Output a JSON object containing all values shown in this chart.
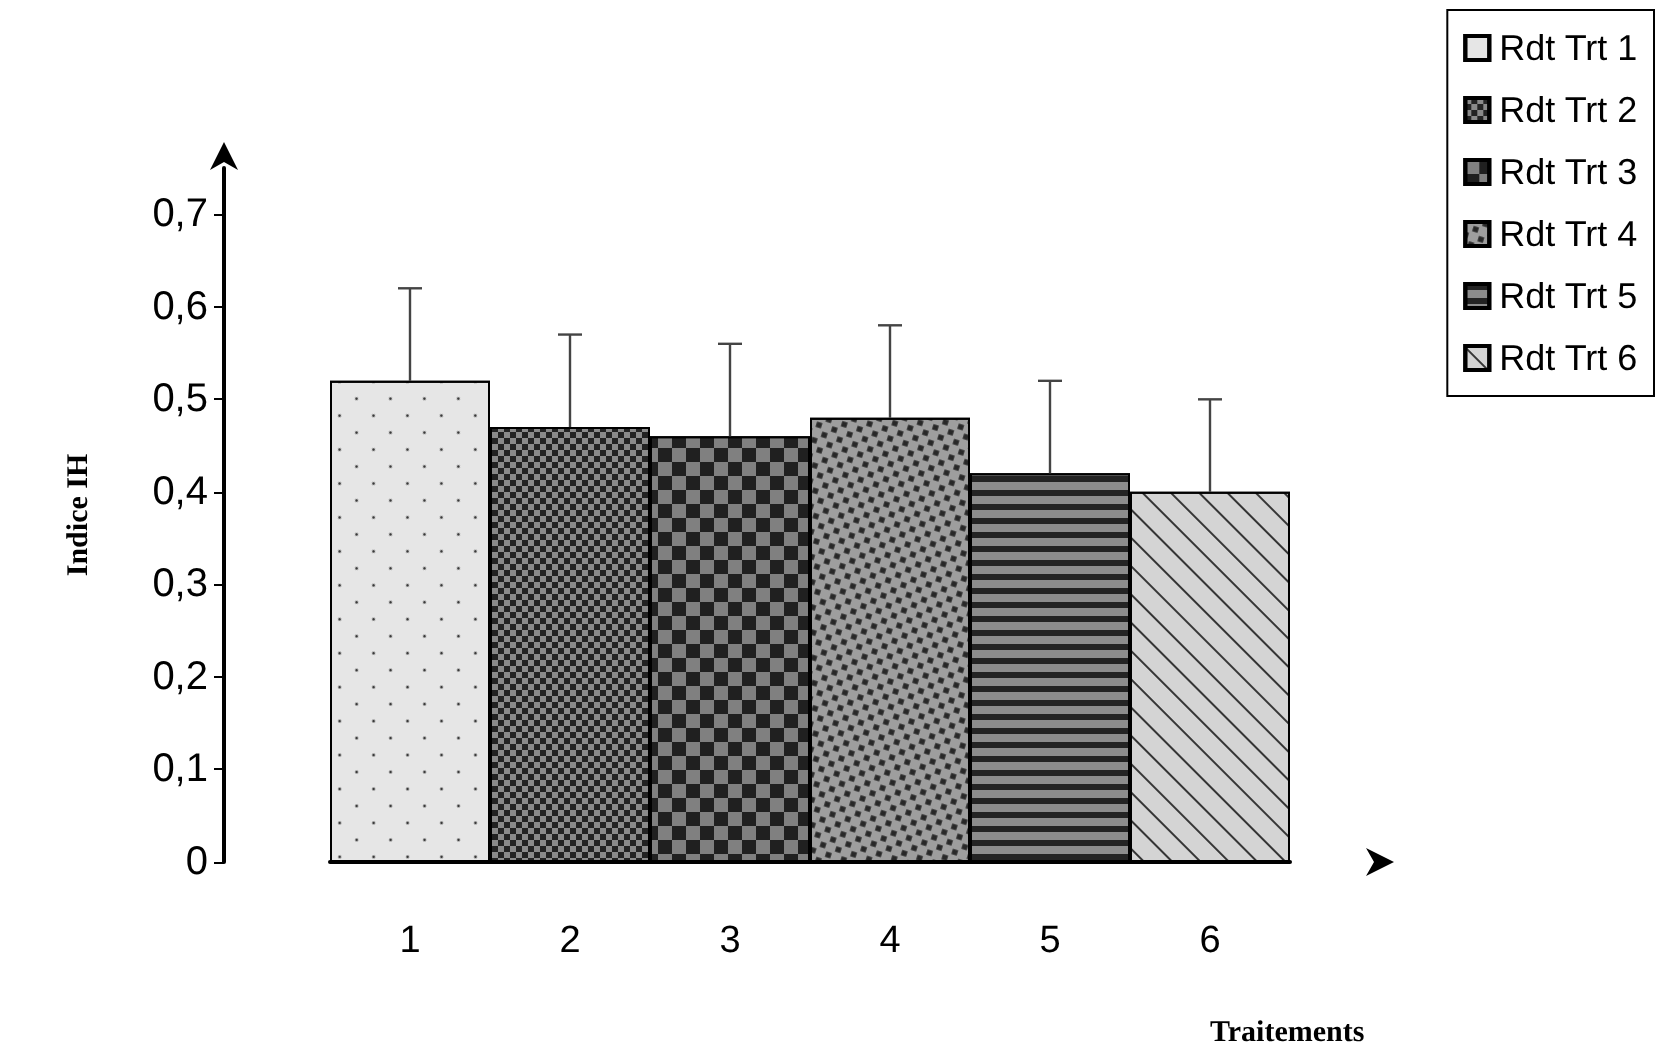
{
  "chart_data": {
    "type": "bar",
    "xlabel": "Traitements",
    "ylabel": "Indice IH",
    "categories": [
      "1",
      "2",
      "3",
      "4",
      "5",
      "6"
    ],
    "series": [
      {
        "name": "Rdt Trt 1",
        "color": "#e6e6e6",
        "values": [
          0.52,
          null,
          null,
          null,
          null,
          null
        ],
        "errors": [
          [
            0.52,
            0.62
          ],
          null,
          null,
          null,
          null,
          null
        ]
      },
      {
        "name": "Rdt Trt 2",
        "color": "#8a8a8a",
        "values": [
          null,
          0.47,
          null,
          null,
          null,
          null
        ],
        "errors": [
          null,
          [
            0.47,
            0.57
          ],
          null,
          null,
          null,
          null
        ]
      },
      {
        "name": "Rdt Trt 3",
        "color": "#808080",
        "values": [
          null,
          null,
          0.46,
          null,
          null,
          null
        ],
        "errors": [
          null,
          null,
          [
            0.46,
            0.56
          ],
          null,
          null,
          null
        ]
      },
      {
        "name": "Rdt Trt 4",
        "color": "#9e9e9e",
        "values": [
          null,
          null,
          null,
          0.48,
          null,
          null
        ],
        "errors": [
          null,
          null,
          null,
          [
            0.48,
            0.58
          ],
          null,
          null
        ]
      },
      {
        "name": "Rdt Trt 5",
        "color": "#8c8c8c",
        "values": [
          null,
          null,
          null,
          null,
          0.42,
          null
        ],
        "errors": [
          null,
          null,
          null,
          null,
          [
            0.42,
            0.52
          ],
          null
        ]
      },
      {
        "name": "Rdt Trt 6",
        "color": "#d4d4d4",
        "values": [
          null,
          null,
          null,
          null,
          null,
          0.4
        ],
        "errors": [
          null,
          null,
          null,
          null,
          null,
          [
            0.4,
            0.5
          ]
        ]
      }
    ],
    "ylim": [
      0,
      0.75
    ],
    "yticks": [
      {
        "value": 0,
        "label": "0"
      },
      {
        "value": 0.1,
        "label": "0,1"
      },
      {
        "value": 0.2,
        "label": "0,2"
      },
      {
        "value": 0.3,
        "label": "0,3"
      },
      {
        "value": 0.4,
        "label": "0,4"
      },
      {
        "value": 0.5,
        "label": "0,5"
      },
      {
        "value": 0.6,
        "label": "0,6"
      },
      {
        "value": 0.7,
        "label": "0,7"
      }
    ],
    "grid": false,
    "legend": "top right"
  }
}
